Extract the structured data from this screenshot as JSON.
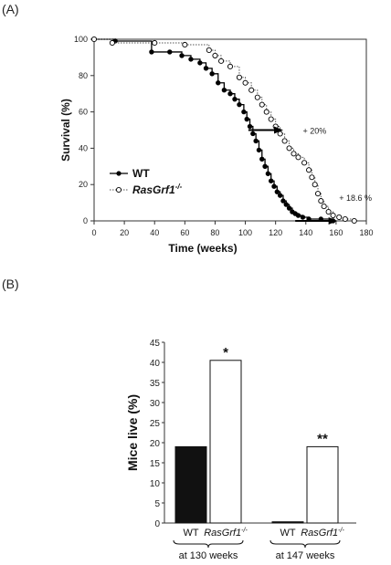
{
  "panels": {
    "a": "(A)",
    "b": "(B)"
  },
  "chart_data": [
    {
      "type": "line",
      "title": "",
      "xlabel": "Time (weeks)",
      "ylabel": "Survival (%)",
      "xlim": [
        0,
        180
      ],
      "ylim": [
        0,
        100
      ],
      "xticks": [
        "0",
        "20",
        "40",
        "60",
        "80",
        "100",
        "120",
        "140",
        "160",
        "180"
      ],
      "yticks": [
        "0",
        "20",
        "40",
        "60",
        "80",
        "100"
      ],
      "legend": {
        "placement": "bottom-left",
        "wt": "WT",
        "ko_prefix": "RasGrf1",
        "ko_sup": "-/-"
      },
      "series": [
        {
          "name": "WT",
          "style": "solid-filled",
          "points": [
            [
              0,
              100
            ],
            [
              14,
              99
            ],
            [
              38,
              93
            ],
            [
              50,
              93
            ],
            [
              58,
              91
            ],
            [
              64,
              89
            ],
            [
              70,
              87
            ],
            [
              74,
              84
            ],
            [
              78,
              81
            ],
            [
              82,
              76
            ],
            [
              86,
              72
            ],
            [
              90,
              70
            ],
            [
              93,
              67
            ],
            [
              96,
              64
            ],
            [
              99,
              60
            ],
            [
              101,
              56
            ],
            [
              103,
              52
            ],
            [
              105,
              48
            ],
            [
              107,
              44
            ],
            [
              109,
              39
            ],
            [
              111,
              34
            ],
            [
              113,
              30
            ],
            [
              115,
              26
            ],
            [
              117,
              22
            ],
            [
              119,
              19
            ],
            [
              121,
              16
            ],
            [
              123,
              14
            ],
            [
              125,
              11
            ],
            [
              127,
              9
            ],
            [
              129,
              7
            ],
            [
              131,
              5
            ],
            [
              133,
              4
            ],
            [
              135,
              3
            ],
            [
              138,
              2
            ],
            [
              142,
              1
            ],
            [
              150,
              1
            ],
            [
              158,
              0
            ]
          ]
        },
        {
          "name": "RasGrf1-/-",
          "style": "dotted-open",
          "points": [
            [
              0,
              100
            ],
            [
              12,
              98
            ],
            [
              40,
              98
            ],
            [
              60,
              97
            ],
            [
              76,
              94
            ],
            [
              80,
              91
            ],
            [
              84,
              88
            ],
            [
              90,
              85
            ],
            [
              96,
              79
            ],
            [
              100,
              76
            ],
            [
              104,
              72
            ],
            [
              108,
              68
            ],
            [
              111,
              64
            ],
            [
              114,
              60
            ],
            [
              117,
              56
            ],
            [
              120,
              52
            ],
            [
              123,
              48
            ],
            [
              126,
              44
            ],
            [
              129,
              40
            ],
            [
              132,
              37
            ],
            [
              135,
              35
            ],
            [
              139,
              32
            ],
            [
              142,
              28
            ],
            [
              144,
              24
            ],
            [
              146,
              20
            ],
            [
              148,
              15
            ],
            [
              150,
              11
            ],
            [
              152,
              8
            ],
            [
              155,
              5
            ],
            [
              158,
              3
            ],
            [
              162,
              2
            ],
            [
              166,
              1
            ],
            [
              172,
              0
            ]
          ]
        }
      ],
      "annotations": [
        {
          "text": "+ 20%",
          "x": 138,
          "y": 50
        },
        {
          "text": "+ 18.6 %",
          "x": 162,
          "y": 13
        }
      ]
    },
    {
      "type": "bar",
      "title": "",
      "ylabel": "Mice live (%)",
      "ylim": [
        0,
        45
      ],
      "yticks": [
        "0",
        "5",
        "10",
        "15",
        "20",
        "25",
        "30",
        "35",
        "40",
        "45"
      ],
      "groups": [
        {
          "label": "at 130 weeks",
          "bars": [
            {
              "label": "WT",
              "value": 19,
              "fill": "#111111",
              "sig": ""
            },
            {
              "label_prefix": "RasGrf1",
              "label_sup": "-/-",
              "value": 40.5,
              "fill": "#ffffff",
              "sig": "*"
            }
          ]
        },
        {
          "label": "at 147 weeks",
          "bars": [
            {
              "label": "WT",
              "value": 0.3,
              "fill": "#111111",
              "sig": ""
            },
            {
              "label_prefix": "RasGrf1",
              "label_sup": "-/-",
              "value": 19,
              "fill": "#ffffff",
              "sig": "**"
            }
          ]
        }
      ]
    }
  ]
}
